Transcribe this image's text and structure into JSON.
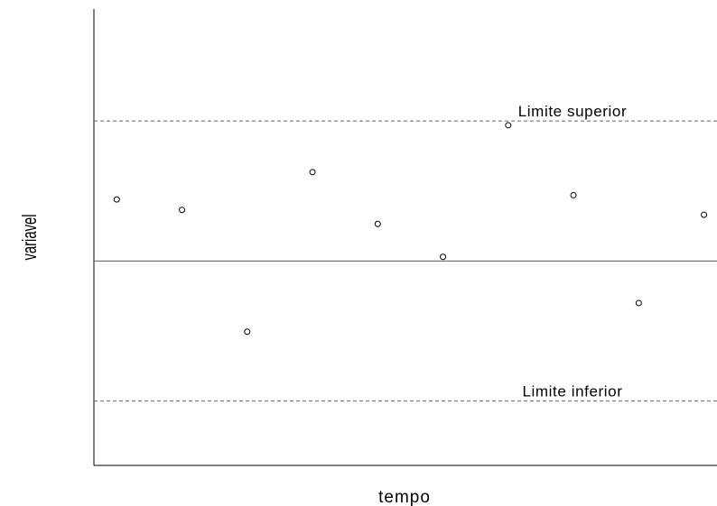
{
  "chart_data": {
    "type": "scatter",
    "title": "",
    "xlabel": "tempo",
    "ylabel": "variavel",
    "x": [
      1,
      2,
      3,
      4,
      5,
      6,
      7,
      8,
      9,
      10
    ],
    "y": [
      0.88,
      0.73,
      -1.01,
      1.27,
      0.53,
      0.06,
      1.94,
      0.94,
      -0.6,
      0.66
    ],
    "center_line": 0,
    "upper_limit": {
      "value": 2,
      "label": "Limite superior"
    },
    "lower_limit": {
      "value": -2,
      "label": "Limite inferior"
    },
    "xlim": [
      0.65,
      10.2
    ],
    "ylim": [
      -2.92,
      3.6
    ],
    "axes_visible": [
      "left",
      "bottom"
    ],
    "tick_labels": false,
    "grid": false,
    "marker": "open-circle"
  }
}
